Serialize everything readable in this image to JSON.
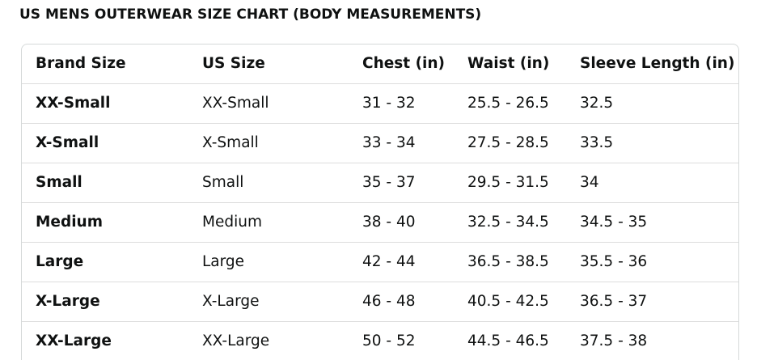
{
  "title": "US MENS OUTERWEAR SIZE CHART (BODY MEASUREMENTS)",
  "table": {
    "header": [
      "Brand Size",
      "US Size",
      "Chest (in)",
      "Waist (in)",
      "Sleeve Length (in)"
    ],
    "rows": [
      [
        "XX-Small",
        "XX-Small",
        "31 - 32",
        "25.5 - 26.5",
        "32.5"
      ],
      [
        "X-Small",
        "X-Small",
        "33 - 34",
        "27.5 - 28.5",
        "33.5"
      ],
      [
        "Small",
        "Small",
        "35 - 37",
        "29.5 - 31.5",
        "34"
      ],
      [
        "Medium",
        "Medium",
        "38 - 40",
        "32.5 - 34.5",
        "34.5 - 35"
      ],
      [
        "Large",
        "Large",
        "42 - 44",
        "36.5 - 38.5",
        "35.5 - 36"
      ],
      [
        "X-Large",
        "X-Large",
        "46 - 48",
        "40.5 - 42.5",
        "36.5 - 37"
      ],
      [
        "XX-Large",
        "XX-Large",
        "50 - 52",
        "44.5 - 46.5",
        "37.5 - 38"
      ]
    ]
  }
}
